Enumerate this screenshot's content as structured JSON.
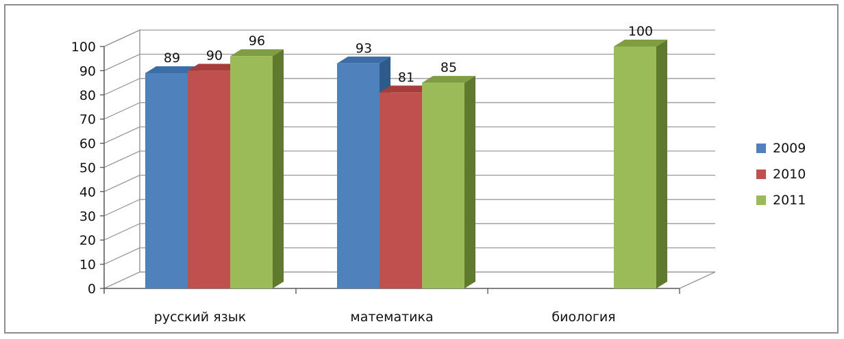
{
  "chart_data": {
    "type": "bar",
    "categories": [
      "русский язык",
      "математика",
      "биология"
    ],
    "series": [
      {
        "name": "2009",
        "values": [
          89,
          93,
          null
        ],
        "color": "#4f81bd",
        "side": "#2e5c8a",
        "top": "#3d6da6"
      },
      {
        "name": "2010",
        "values": [
          90,
          81,
          null
        ],
        "color": "#c0504d",
        "side": "#8b2f2c",
        "top": "#a63d3a"
      },
      {
        "name": "2011",
        "values": [
          96,
          85,
          100
        ],
        "color": "#9bbb59",
        "side": "#5f7a2e",
        "top": "#7f9e42"
      }
    ],
    "ylim": [
      0,
      100
    ],
    "yticks": [
      "0",
      "10",
      "20",
      "30",
      "40",
      "50",
      "60",
      "70",
      "80",
      "90",
      "100"
    ],
    "grid": true,
    "legend": "right",
    "style": "3d-column"
  }
}
